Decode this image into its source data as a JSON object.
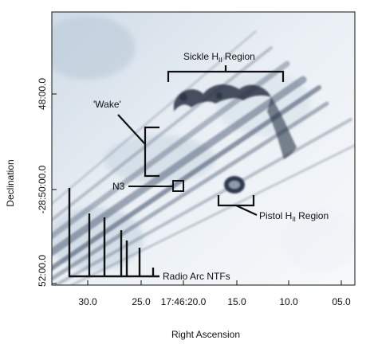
{
  "axes": {
    "xlabel": "Right Ascension",
    "ylabel": "Declination",
    "xticks": [
      "30.0",
      "25.0",
      "17:46:20.0",
      "15.0",
      "10.0",
      "05.0"
    ],
    "yticks": [
      "48:00.0",
      "-28:50:00.0",
      "52:00.0"
    ]
  },
  "annotations": {
    "sickle": "Sickle H",
    "sickle_sub": "II",
    "sickle_suffix": " Region",
    "wake": "'Wake'",
    "n3": "N3",
    "pistol": "Pistol H",
    "pistol_sub": "II",
    "pistol_suffix": " Region",
    "ntf": "Radio Arc NTFs"
  },
  "colors": {
    "ink": "#111111",
    "filament": "#3a4a63",
    "sky": "#e6edf3"
  }
}
